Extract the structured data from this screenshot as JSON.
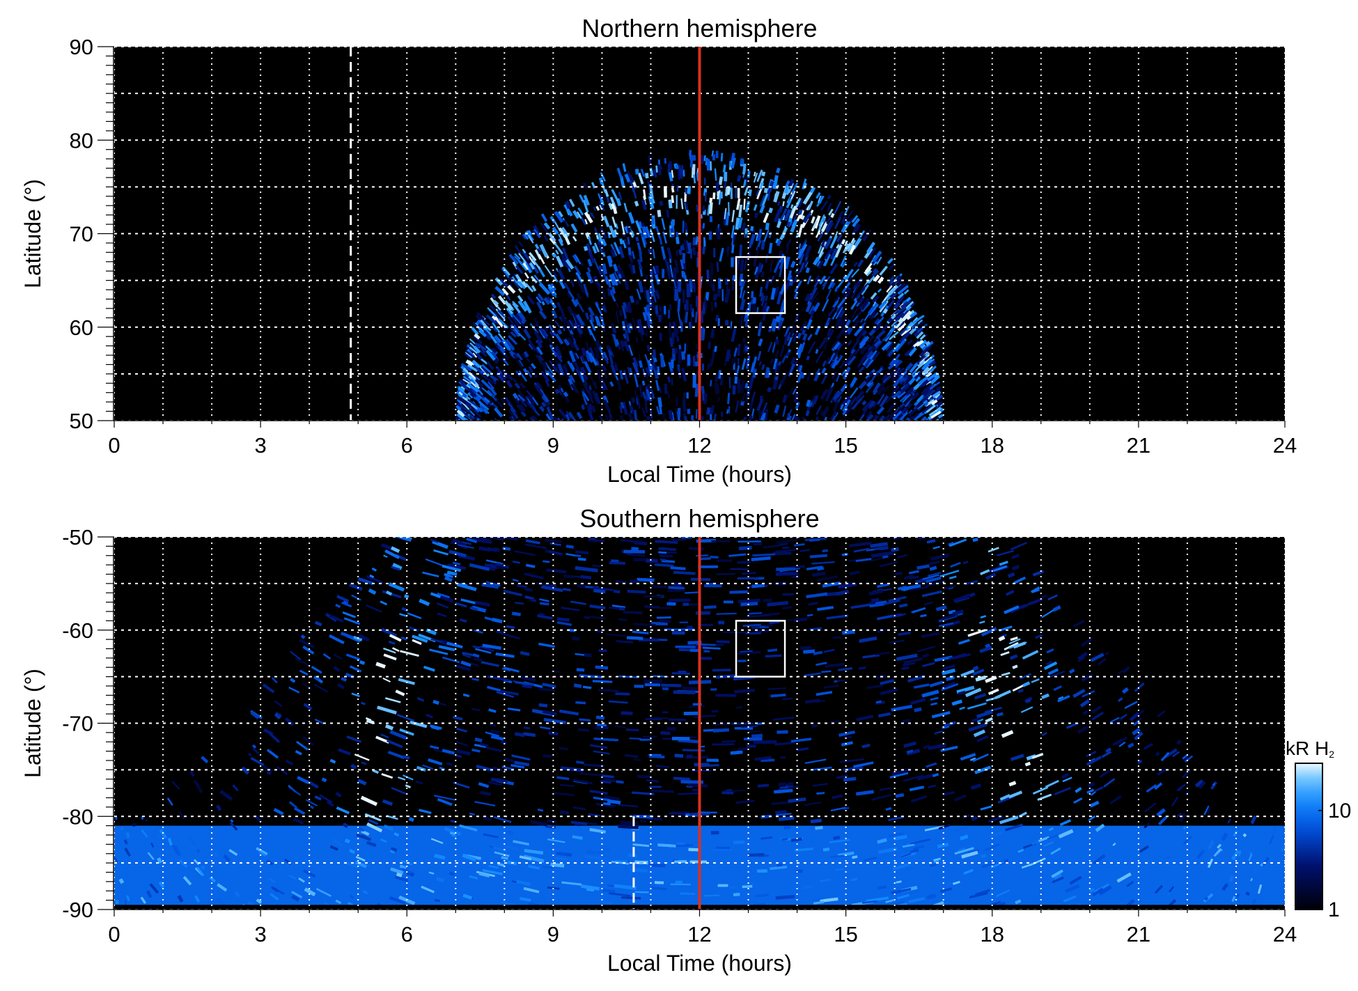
{
  "chart_data": [
    {
      "type": "heatmap",
      "title": "Northern hemisphere",
      "xlabel": "Local Time (hours)",
      "ylabel": "Latitude (°)",
      "xlim": [
        0,
        24
      ],
      "ylim": [
        50,
        90
      ],
      "xticks": [
        "0",
        "3",
        "6",
        "9",
        "12",
        "15",
        "18",
        "21",
        "24"
      ],
      "yticks": [
        "50",
        "60",
        "70",
        "80",
        "90"
      ],
      "grid": true,
      "grid_x_step": 1,
      "grid_y_step": 5,
      "red_line_lt": 12,
      "dashed_line_lt": 4.85,
      "dashed_line_lat": [
        50,
        90
      ],
      "box": {
        "lt": [
          12.75,
          13.75
        ],
        "lat": [
          61.5,
          67.5
        ]
      },
      "emission_lt_range_at_50": [
        7,
        17
      ],
      "emission_max_lat": 79
    },
    {
      "type": "heatmap",
      "title": "Southern hemisphere",
      "xlabel": "Local Time (hours)",
      "ylabel": "Latitude (°)",
      "xlim": [
        0,
        24
      ],
      "ylim": [
        -90,
        -50
      ],
      "xticks": [
        "0",
        "3",
        "6",
        "9",
        "12",
        "15",
        "18",
        "21",
        "24"
      ],
      "yticks": [
        "-90",
        "-80",
        "-70",
        "-60",
        "-50"
      ],
      "grid": true,
      "grid_x_step": 1,
      "grid_y_step": 5,
      "red_line_lt": 12,
      "dashed_line_lt": 10.65,
      "dashed_line_lat": [
        -90,
        -80
      ],
      "box": {
        "lt": [
          12.75,
          13.75
        ],
        "lat": [
          -65,
          -59
        ]
      },
      "colorbar": {
        "label": "kR H",
        "label_sub": "2",
        "scale": "log",
        "range": [
          1,
          30
        ],
        "ticks": [
          "1",
          "10"
        ],
        "tick_values": [
          1,
          10
        ]
      }
    }
  ],
  "colors": {
    "red_line": "#d8321e",
    "background": "#000000",
    "grid": "#ffffff",
    "emission": "#1a78ff"
  }
}
